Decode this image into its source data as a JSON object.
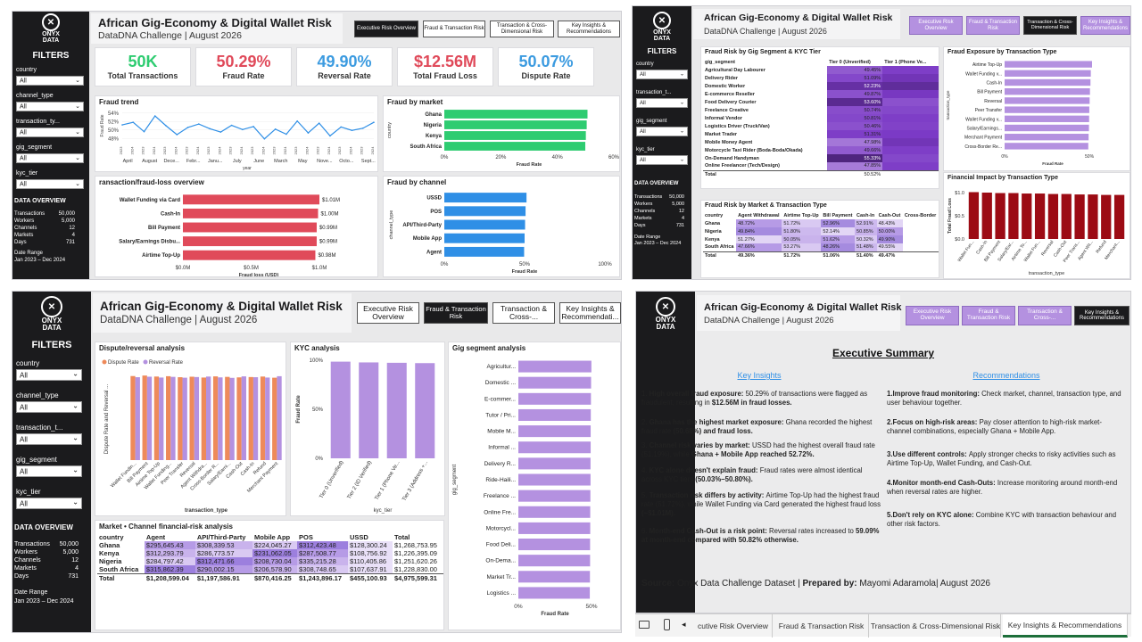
{
  "brand": {
    "logo_text": "ONYX\nDATA"
  },
  "header": {
    "title": "African Gig-Economy & Digital Wallet Risk",
    "subtitle": "DataDNA Challenge | August 2026"
  },
  "nav": [
    "Executive Risk Overview",
    "Fraud & Transaction Risk",
    "Transaction & Cross-Dimensional Risk",
    "Key Insights & Recommendations"
  ],
  "nav_short": [
    "Executive Risk Overview",
    "Fraud & Transaction Risk",
    "Transaction & Cross-...",
    "Key Insights & Recommendati..."
  ],
  "nav_short4": [
    "Executive Risk Overview",
    "Fraud & Transaction Risk",
    "Transaction & Cross-...",
    "Key Insights & Recommendations"
  ],
  "filters": {
    "title": "FILTERS",
    "items": [
      {
        "label": "country",
        "value": "All"
      },
      {
        "label": "channel_type",
        "value": "All"
      },
      {
        "label": "transaction_ty...",
        "value": "All"
      },
      {
        "label": "gig_segment",
        "value": "All"
      },
      {
        "label": "kyc_tier",
        "value": "All"
      }
    ],
    "items_p2": [
      {
        "label": "country",
        "value": "All"
      },
      {
        "label": "transaction_t...",
        "value": "All"
      },
      {
        "label": "gig_segment",
        "value": "All"
      },
      {
        "label": "kyc_tier",
        "value": "All"
      }
    ],
    "items_p3": [
      {
        "label": "country",
        "value": "All"
      },
      {
        "label": "channel_type",
        "value": "All"
      },
      {
        "label": "transaction_t...",
        "value": "All"
      },
      {
        "label": "gig_segment",
        "value": "All"
      },
      {
        "label": "kyc_tier",
        "value": "All"
      }
    ]
  },
  "overview": {
    "title": "DATA OVERVIEW",
    "rows": [
      {
        "k": "Transactions",
        "v": "50,000"
      },
      {
        "k": "Workers",
        "v": "5,000"
      },
      {
        "k": "Channels",
        "v": "12"
      },
      {
        "k": "Markets",
        "v": "4"
      },
      {
        "k": "Days",
        "v": "731"
      }
    ],
    "date_label": "Date Range",
    "date_value": "Jan 2023 – Dec 2024"
  },
  "kpis": [
    {
      "value": "50K",
      "label": "Total Transactions",
      "color": "#2ecc71"
    },
    {
      "value": "50.29%",
      "label": "Fraud Rate",
      "color": "#e04a5a"
    },
    {
      "value": "49.90%",
      "label": "Reversal Rate",
      "color": "#3c9be0"
    },
    {
      "value": "$12.56M",
      "label": "Total Fraud Loss",
      "color": "#e04a5a"
    },
    {
      "value": "50.07%",
      "label": "Dispute Rate",
      "color": "#3c9be0"
    }
  ],
  "p1": {
    "fraud_trend": {
      "title": "Fraud trend",
      "ylabel": "Fraud Rate",
      "xlabel": "year",
      "yticks": [
        "54%",
        "52%",
        "50%",
        "48%"
      ],
      "xticks": [
        "April",
        "August",
        "Dece...",
        "Febr...",
        "Janu...",
        "July",
        "June",
        "March",
        "May",
        "Nove...",
        "Octo...",
        "Sept..."
      ],
      "year_ticks": [
        "2023",
        "2024",
        "2023",
        "2024",
        "2023",
        "2024",
        "2023",
        "2024",
        "2023",
        "2024",
        "2023",
        "2024",
        "2023",
        "2024",
        "2023",
        "2024",
        "2023",
        "2024",
        "2023",
        "2024",
        "2023",
        "2024",
        "2023",
        "2024"
      ],
      "values": [
        51.2,
        51.8,
        49.6,
        53.3,
        51.0,
        48.9,
        50.6,
        51.4,
        50.3,
        49.5,
        51.1,
        50.1,
        50.8,
        47.9,
        50.2,
        49.0,
        52.1,
        49.3,
        51.6,
        48.6,
        50.7,
        49.9,
        50.4,
        51.8
      ]
    },
    "fraud_by_market": {
      "title": "Fraud by market",
      "ylabel": "country",
      "xlabel": "Fraud Rate",
      "categories": [
        "Ghana",
        "Nigeria",
        "Kenya",
        "South Africa"
      ],
      "values": [
        50.68,
        50.4,
        50.1,
        49.9
      ],
      "xticks": [
        "0%",
        "20%",
        "40%",
        "60%"
      ]
    },
    "loss_overview": {
      "title": "ransaction/fraud-loss overview",
      "xlabel": "Fraud loss (USD)",
      "categories": [
        "Wallet Funding via Card",
        "Cash-In",
        "Bill Payment",
        "Salary/Earnings Disbu...",
        "Airtime Top-Up"
      ],
      "values": [
        1.01,
        1.0,
        0.99,
        0.99,
        0.98
      ],
      "labels": [
        "$1.01M",
        "$1.00M",
        "$0.99M",
        "$0.99M",
        "$0.98M"
      ],
      "xticks": [
        "$0.0M",
        "$0.5M",
        "$1.0M"
      ]
    },
    "fraud_by_channel": {
      "title": "Fraud by channel",
      "ylabel": "channel_type",
      "xlabel": "Fraud Rate",
      "categories": [
        "USSD",
        "POS",
        "API/Third-Party",
        "Mobile App",
        "Agent"
      ],
      "values": [
        51.19,
        50.6,
        50.3,
        50.0,
        49.7
      ],
      "xticks": [
        "0%",
        "50%",
        "100%"
      ]
    }
  },
  "p2": {
    "heat": {
      "title": "Fraud Risk by Gig Segment & KYC Tier",
      "header": [
        "gig_segment",
        "Tier 0 (Unverified)",
        "Tier 1 (Phone Ve..."
      ],
      "rows": [
        {
          "name": "Agricultural Day Labourer",
          "a": "49.45%",
          "ai": 0.45,
          "bi": 0.6
        },
        {
          "name": "Delivery Rider",
          "a": "51.09%",
          "ai": 0.55,
          "bi": 0.7
        },
        {
          "name": "Domestic Worker",
          "a": "52.23%",
          "ai": 0.8,
          "bi": 0.85
        },
        {
          "name": "E-commerce Reseller",
          "a": "49.87%",
          "ai": 0.5,
          "bi": 0.65
        },
        {
          "name": "Food Delivery Courier",
          "a": "53.60%",
          "ai": 0.9,
          "bi": 0.5
        },
        {
          "name": "Freelance Creative",
          "a": "50.74%",
          "ai": 0.52,
          "bi": 0.55
        },
        {
          "name": "Informal Vendor",
          "a": "50.81%",
          "ai": 0.55,
          "bi": 0.6
        },
        {
          "name": "Logistics Driver (Truck/Van)",
          "a": "50.46%",
          "ai": 0.5,
          "bi": 0.58
        },
        {
          "name": "Market Trader",
          "a": "51.31%",
          "ai": 0.6,
          "bi": 0.62
        },
        {
          "name": "Mobile Money Agent",
          "a": "47.98%",
          "ai": 0.3,
          "bi": 0.7
        },
        {
          "name": "Motorcycle Taxi Rider (Boda-Boda/Okada)",
          "a": "49.66%",
          "ai": 0.45,
          "bi": 0.6
        },
        {
          "name": "On-Demand Handyman",
          "a": "55.33%",
          "ai": 1.0,
          "bi": 0.55
        },
        {
          "name": "Online Freelancer (Tech/Design)",
          "a": "47.85%",
          "ai": 0.28,
          "bi": 0.6
        },
        {
          "name": "Total",
          "a": "50.52%",
          "ai": 0,
          "bi": 0
        }
      ]
    },
    "exposure": {
      "title": "Fraud Exposure by Transaction Type",
      "ylabel": "transaction_type",
      "xlabel": "Fraud Rate",
      "categories": [
        "Airtime Top-Up",
        "Wallet Funding v...",
        "Cash-In",
        "Bill Payment",
        "Reversal",
        "Peer Transfer",
        "Wallet Funding v...",
        "Salary/Earnings...",
        "Merchant Payment",
        "Cross-Border Re..."
      ],
      "values": [
        51.72,
        51.0,
        50.8,
        50.5,
        50.3,
        50.1,
        50.0,
        49.9,
        49.7,
        49.5
      ],
      "xticks": [
        "0%",
        "50%"
      ]
    },
    "market_table": {
      "title": "Fraud Risk by Market & Transaction Type",
      "header": [
        "country",
        "Agent Withdrawal",
        "Airtime Top-Up",
        "Bill Payment",
        "Cash-In",
        "Cash-Out",
        "Cross-Border"
      ],
      "rows": [
        [
          "Ghana",
          "48.72%",
          "51.72%",
          "52.96%",
          "52.91%",
          "48.43%",
          ""
        ],
        [
          "Nigeria",
          "49.84%",
          "51.80%",
          "52.14%",
          "50.85%",
          "50.00%",
          ""
        ],
        [
          "Kenya",
          "51.27%",
          "50.05%",
          "51.62%",
          "50.32%",
          "49.90%",
          ""
        ],
        [
          "South Africa",
          "47.66%",
          "53.27%",
          "48.26%",
          "51.48%",
          "49.55%",
          ""
        ],
        [
          "Total",
          "49.36%",
          "51.72%",
          "51.06%",
          "51.40%",
          "49.47%",
          ""
        ]
      ]
    },
    "impact": {
      "title": "Financial Impact by Transaction Type",
      "ylabel": "Total Fraud Loss",
      "xlabel": "transaction_type",
      "categories": [
        "Wallet Fun...",
        "Cash-In",
        "Bill Payment",
        "Salary/Ear...",
        "Airtime To...",
        "Wallet Fun...",
        "Reversal",
        "Cash-Out",
        "Peer Trans...",
        "Agent Wit...",
        "Refund",
        "Merchant..."
      ],
      "values": [
        1.01,
        1.0,
        0.99,
        0.99,
        0.98,
        0.98,
        0.97,
        0.97,
        0.96,
        0.96,
        0.95,
        0.95
      ],
      "yticks": [
        "$1.0",
        "$0.5",
        "$0.0"
      ]
    }
  },
  "p3": {
    "dispute": {
      "title": "Dispute/reversal analysis",
      "legend": [
        "Dispute Rate",
        "Reversal Rate"
      ],
      "ylabel": "Dispute Rate and Reversal ...",
      "xlabel": "transaction_type",
      "categories": [
        "Wallet Fundin...",
        "Bill Payment",
        "Airtime Top-Up",
        "Wallet Funding...",
        "Peer Transfer",
        "Reversal",
        "Agent Withdra...",
        "Cross-Border R...",
        "Salary/Earni...",
        "Cash-Out",
        "Cash-In",
        "Refund",
        "Merchant Payment"
      ],
      "dispute": [
        50.5,
        50.8,
        50.2,
        50.4,
        49.8,
        50.1,
        49.6,
        50.3,
        50.0,
        49.7,
        49.9,
        50.2,
        49.5
      ],
      "reversal": [
        49.8,
        50.1,
        49.6,
        50.0,
        49.5,
        49.9,
        50.2,
        49.7,
        49.4,
        50.3,
        49.8,
        49.6,
        50.4
      ]
    },
    "kyc": {
      "title": "KYC analysis",
      "ylabel": "Fraud Rate",
      "xlabel": "kyc_tier",
      "categories": [
        "Tier 0 (Unverified)",
        "Tier 2 (ID Verified)",
        "Tier 1 (Phone Ve...",
        "Tier 3 (Address +..."
      ],
      "values": [
        50.8,
        50.4,
        50.2,
        50.03
      ],
      "yticks": [
        "100%",
        "50%",
        "0%"
      ]
    },
    "gig": {
      "title": "Gig segment analysis",
      "ylabel": "gig_segment",
      "xlabel": "Fraud Rate",
      "categories": [
        "Agricultur...",
        "Domestic ...",
        "E-commer...",
        "Tutor / Pri...",
        "Mobile M...",
        "Informal ...",
        "Delivery R...",
        "Ride-Haili...",
        "Freelance ...",
        "Online Fre...",
        "Motorcycl...",
        "Food Deli...",
        "On-Dema...",
        "Market Tr...",
        "Logistics ..."
      ],
      "values": [
        50.9,
        50.7,
        50.6,
        50.5,
        50.4,
        50.4,
        50.3,
        50.3,
        50.2,
        50.1,
        50.1,
        50.0,
        50.0,
        49.9,
        49.8
      ],
      "xticks": [
        "0%",
        "50%"
      ]
    },
    "table": {
      "title": "Market • Channel financial-risk analysis",
      "header": [
        "country",
        "Agent",
        "API/Third-Party",
        "Mobile App",
        "POS",
        "USSD",
        "Total"
      ],
      "rows": [
        [
          "Ghana",
          "$295,645.43",
          "$308,339.53",
          "$224,045.27",
          "$312,423.48",
          "$128,300.24",
          "$1,268,753.95"
        ],
        [
          "Kenya",
          "$312,293.79",
          "$286,773.57",
          "$231,062.05",
          "$287,508.77",
          "$108,756.92",
          "$1,226,395.09"
        ],
        [
          "Nigeria",
          "$284,797.42",
          "$312,471.66",
          "$208,730.04",
          "$335,215.28",
          "$110,405.86",
          "$1,251,620.26"
        ],
        [
          "South Africa",
          "$315,862.39",
          "$290,002.15",
          "$206,578.90",
          "$308,748.65",
          "$107,637.91",
          "$1,228,830.00"
        ],
        [
          "Total",
          "$1,208,599.04",
          "$1,197,586.91",
          "$870,416.25",
          "$1,243,896.17",
          "$455,100.93",
          "$4,975,599.31"
        ]
      ]
    }
  },
  "p4": {
    "summary_title": "Executive Summary",
    "insights_title": "Key Insights",
    "recs_title": "Recommendations",
    "insights": [
      {
        "num": "1.",
        "bold": "High overall fraud exposure:",
        "text": "50.29% of transactions were flagged as fraudulent, resulting in",
        "tail": "$12.56M in fraud losses."
      },
      {
        "num": "2.",
        "bold": "Ghana has the highest market exposure:",
        "text": "Ghana recorded the highest fraud rate",
        "tail": "(50.68%) and fraud loss."
      },
      {
        "num": "3.",
        "bold": "Channel risk varies by market:",
        "text": "USSD had the highest overall fraud rate (51.19%), while",
        "tail": "Ghana + Mobile App reached 52.72%."
      },
      {
        "num": "4.",
        "bold": "KYC alone doesn't explain fraud:",
        "text": "Fraud rates were almost identical across KYC tiers",
        "tail": "(50.03%–50.80%)."
      },
      {
        "num": "5.",
        "bold": "Transaction risk differs by activity:",
        "text": "Airtime Top-Up had the highest fraud rate (51.72%), while Wallet Funding via Card generated the highest fraud loss",
        "tail": "(~$1.01M)."
      },
      {
        "num": "6.",
        "bold": "Month-end Cash-Out is a risk point:",
        "text": "Reversal rates increased to",
        "tail": "59.09% at month-end compared with 50.82% otherwise."
      }
    ],
    "recs": [
      {
        "bold": "1.Improve fraud monitoring:",
        "text": "Check market, channel, transaction type, and user behaviour together."
      },
      {
        "bold": "2.Focus on high-risk areas:",
        "text": "Pay closer attention to high-risk market-channel combinations, especially Ghana + Mobile App."
      },
      {
        "bold": "3.Use different controls:",
        "text": "Apply stronger checks to risky activities such as Airtime Top-Up, Wallet Funding, and Cash-Out."
      },
      {
        "bold": "4.Monitor month-end Cash-Outs:",
        "text": "Increase monitoring around month-end when reversal rates are higher."
      },
      {
        "bold": "5.Don't rely on KYC alone:",
        "text": "Combine KYC with transaction behaviour and other risk factors."
      }
    ],
    "source_label": "Source:",
    "source_text": "Onyx Data Challenge Dataset |",
    "prep_label": "Prepared by:",
    "prep_text": "Mayomi Adaramola| August 2026"
  },
  "tabs": [
    "cutive Risk Overview",
    "Fraud & Transaction Risk",
    "Transaction & Cross-Dimensional Risk",
    "Key Insights & Recommendations"
  ],
  "colors": {
    "green": "#2ecc71",
    "red": "#e04a5a",
    "blue": "#2f8fe6",
    "purple": "#b491e0",
    "orange": "#ee8a5a",
    "dark_red": "#9c0b14",
    "dark": "#1b1b1d"
  }
}
